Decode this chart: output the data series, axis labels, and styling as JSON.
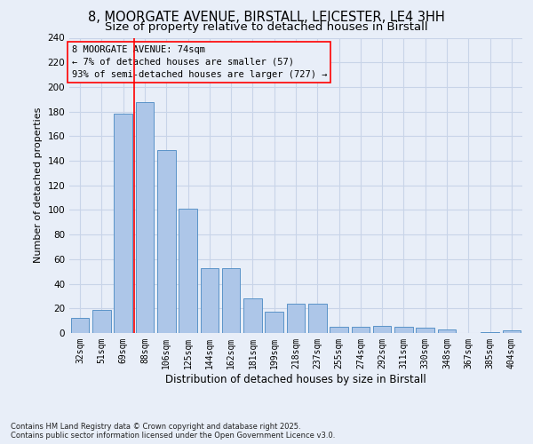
{
  "title_line1": "8, MOORGATE AVENUE, BIRSTALL, LEICESTER, LE4 3HH",
  "title_line2": "Size of property relative to detached houses in Birstall",
  "xlabel": "Distribution of detached houses by size in Birstall",
  "ylabel": "Number of detached properties",
  "categories": [
    "32sqm",
    "51sqm",
    "69sqm",
    "88sqm",
    "106sqm",
    "125sqm",
    "144sqm",
    "162sqm",
    "181sqm",
    "199sqm",
    "218sqm",
    "237sqm",
    "255sqm",
    "274sqm",
    "292sqm",
    "311sqm",
    "330sqm",
    "348sqm",
    "367sqm",
    "385sqm",
    "404sqm"
  ],
  "values": [
    12,
    19,
    178,
    188,
    149,
    101,
    53,
    53,
    28,
    17,
    24,
    24,
    5,
    5,
    6,
    5,
    4,
    3,
    0,
    1,
    2
  ],
  "bar_color": "#adc6e8",
  "bar_edge_color": "#5a93c8",
  "grid_color": "#c8d4e8",
  "background_color": "#e8eef8",
  "annotation_text": "8 MOORGATE AVENUE: 74sqm\n← 7% of detached houses are smaller (57)\n93% of semi-detached houses are larger (727) →",
  "red_line_index": 2.5,
  "ylim_max": 240,
  "ytick_step": 20,
  "footer_text": "Contains HM Land Registry data © Crown copyright and database right 2025.\nContains public sector information licensed under the Open Government Licence v3.0."
}
